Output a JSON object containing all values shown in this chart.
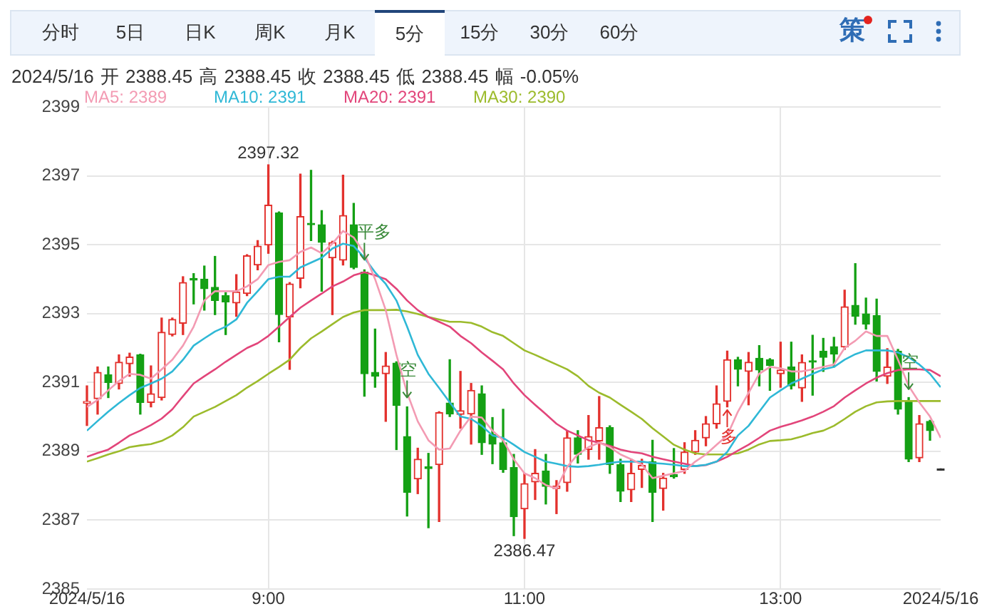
{
  "chart_data": {
    "type": "candlestick",
    "subtitle": "2024/5/16 开 2388.45 高 2388.45 收 2388.45 低 2388.45 幅 -0.05%",
    "annotations": [
      "分时",
      "5日",
      "日K",
      "周K",
      "月K",
      "5分",
      "15分",
      "30分",
      "60分",
      "策",
      {
        "text": "平多",
        "x": "2024-05-16T09:45",
        "y": 2394.56
      },
      {
        "text": "空",
        "x": "2024-05-16T10:05",
        "y": 2390.56
      },
      {
        "text": "多",
        "x": "2024-05-16T12:35",
        "y": 2390.2
      },
      {
        "text": "空",
        "x": "2024-05-16T14:00",
        "y": 2390.8
      }
    ],
    "x": [
      "2024-05-16T07:35",
      "2024-05-16T07:40",
      "2024-05-16T07:45",
      "2024-05-16T07:50",
      "2024-05-16T07:55",
      "2024-05-16T08:00",
      "2024-05-16T08:05",
      "2024-05-16T08:10",
      "2024-05-16T08:15",
      "2024-05-16T08:20",
      "2024-05-16T08:25",
      "2024-05-16T08:30",
      "2024-05-16T08:35",
      "2024-05-16T08:40",
      "2024-05-16T08:45",
      "2024-05-16T08:50",
      "2024-05-16T08:55",
      "2024-05-16T09:00",
      "2024-05-16T09:05",
      "2024-05-16T09:10",
      "2024-05-16T09:15",
      "2024-05-16T09:20",
      "2024-05-16T09:25",
      "2024-05-16T09:30",
      "2024-05-16T09:35",
      "2024-05-16T09:40",
      "2024-05-16T09:45",
      "2024-05-16T09:50",
      "2024-05-16T09:55",
      "2024-05-16T10:00",
      "2024-05-16T10:05",
      "2024-05-16T10:10",
      "2024-05-16T10:15",
      "2024-05-16T10:20",
      "2024-05-16T10:25",
      "2024-05-16T10:30",
      "2024-05-16T10:35",
      "2024-05-16T10:40",
      "2024-05-16T10:45",
      "2024-05-16T10:50",
      "2024-05-16T10:55",
      "2024-05-16T11:00",
      "2024-05-16T11:05",
      "2024-05-16T11:10",
      "2024-05-16T11:15",
      "2024-05-16T11:20",
      "2024-05-16T11:25",
      "2024-05-16T11:30",
      "2024-05-16T11:35",
      "2024-05-16T11:40",
      "2024-05-16T11:45",
      "2024-05-16T11:50",
      "2024-05-16T11:55",
      "2024-05-16T12:00",
      "2024-05-16T12:05",
      "2024-05-16T12:10",
      "2024-05-16T12:15",
      "2024-05-16T12:20",
      "2024-05-16T12:25",
      "2024-05-16T12:30",
      "2024-05-16T12:35",
      "2024-05-16T12:40",
      "2024-05-16T12:45",
      "2024-05-16T12:50",
      "2024-05-16T12:55",
      "2024-05-16T13:00",
      "2024-05-16T13:05",
      "2024-05-16T13:10",
      "2024-05-16T13:15",
      "2024-05-16T13:20",
      "2024-05-16T13:25",
      "2024-05-16T13:30",
      "2024-05-16T13:35",
      "2024-05-16T13:40",
      "2024-05-16T13:45",
      "2024-05-16T13:50",
      "2024-05-16T13:55",
      "2024-05-16T14:00",
      "2024-05-16T14:05",
      "2024-05-16T14:10",
      "2024-05-16T14:15"
    ],
    "xlim": [
      "2024-05-16T07:35",
      "2024-05-16T14:15"
    ],
    "xticks": [
      {
        "value": "2024-05-16T07:35",
        "label": "2024/5/16"
      },
      {
        "value": "2024-05-16T09:00",
        "label": "9:00"
      },
      {
        "value": "2024-05-16T11:00",
        "label": "11:00"
      },
      {
        "value": "2024-05-16T13:00",
        "label": "13:00"
      },
      {
        "value": "2024-05-16T14:15",
        "label": "2024/5/16"
      }
    ],
    "ylim": [
      2385,
      2399
    ],
    "yticks": [
      2385,
      2387,
      2389,
      2391,
      2393,
      2395,
      2397,
      2399
    ],
    "ohlc": [
      [
        2390.4,
        2390.9,
        2389.75,
        2390.45
      ],
      [
        2390.53,
        2391.45,
        2390.08,
        2391.29
      ],
      [
        2391.22,
        2391.45,
        2390.56,
        2391.0
      ],
      [
        2390.97,
        2391.8,
        2390.81,
        2391.59
      ],
      [
        2391.54,
        2391.85,
        2391.18,
        2391.74
      ],
      [
        2391.8,
        2391.82,
        2390.08,
        2390.42
      ],
      [
        2390.42,
        2391.48,
        2390.29,
        2390.67
      ],
      [
        2390.56,
        2392.87,
        2390.49,
        2392.46
      ],
      [
        2392.39,
        2392.87,
        2392.35,
        2392.83
      ],
      [
        2392.72,
        2394.07,
        2392.39,
        2393.9
      ],
      [
        2394.02,
        2394.16,
        2393.28,
        2393.97
      ],
      [
        2394.0,
        2394.38,
        2393.1,
        2393.72
      ],
      [
        2393.76,
        2394.66,
        2392.97,
        2393.38
      ],
      [
        2393.52,
        2393.61,
        2392.39,
        2393.34
      ],
      [
        2393.31,
        2394.13,
        2392.92,
        2393.63
      ],
      [
        2393.58,
        2394.71,
        2393.52,
        2394.68
      ],
      [
        2394.41,
        2395.12,
        2394.27,
        2394.96
      ],
      [
        2394.99,
        2397.32,
        2394.75,
        2396.15
      ],
      [
        2395.92,
        2395.95,
        2392.18,
        2392.97
      ],
      [
        2392.9,
        2393.9,
        2391.38,
        2393.86
      ],
      [
        2394.02,
        2397.05,
        2393.75,
        2395.82
      ],
      [
        2395.62,
        2397.16,
        2395.12,
        2395.58
      ],
      [
        2395.58,
        2395.99,
        2393.65,
        2395.07
      ],
      [
        2394.62,
        2395.1,
        2392.97,
        2395.06
      ],
      [
        2394.55,
        2397.02,
        2394.41,
        2395.85
      ],
      [
        2395.58,
        2396.2,
        2394.3,
        2394.34
      ],
      [
        2394.2,
        2394.27,
        2390.6,
        2391.25
      ],
      [
        2391.29,
        2392.55,
        2390.86,
        2391.18
      ],
      [
        2391.25,
        2391.87,
        2389.87,
        2391.48
      ],
      [
        2391.56,
        2391.6,
        2389.05,
        2390.33
      ],
      [
        2389.43,
        2390.29,
        2387.12,
        2387.81
      ],
      [
        2388.2,
        2389.09,
        2387.77,
        2388.77
      ],
      [
        2388.55,
        2388.94,
        2386.78,
        2388.5
      ],
      [
        2388.61,
        2390.15,
        2386.96,
        2390.12
      ],
      [
        2390.4,
        2391.66,
        2390.01,
        2390.08
      ],
      [
        2390.07,
        2391.32,
        2389.67,
        2390.18
      ],
      [
        2390.08,
        2390.97,
        2389.21,
        2390.77
      ],
      [
        2390.67,
        2390.9,
        2388.91,
        2389.25
      ],
      [
        2389.49,
        2389.98,
        2388.64,
        2389.21
      ],
      [
        2389.25,
        2390.22,
        2388.39,
        2388.47
      ],
      [
        2388.53,
        2388.91,
        2386.55,
        2387.1
      ],
      [
        2387.33,
        2388.36,
        2386.47,
        2388.06
      ],
      [
        2388.11,
        2389.05,
        2387.6,
        2388.36
      ],
      [
        2388.43,
        2388.91,
        2387.47,
        2387.98
      ],
      [
        2387.92,
        2388.15,
        2387.19,
        2387.99
      ],
      [
        2388.09,
        2389.6,
        2387.84,
        2389.39
      ],
      [
        2389.39,
        2389.6,
        2388.66,
        2388.91
      ],
      [
        2389.05,
        2390.04,
        2388.77,
        2389.43
      ],
      [
        2389.3,
        2390.59,
        2388.77,
        2389.69
      ],
      [
        2389.69,
        2389.74,
        2388.36,
        2388.61
      ],
      [
        2388.61,
        2388.77,
        2387.54,
        2387.84
      ],
      [
        2387.88,
        2388.77,
        2387.54,
        2388.36
      ],
      [
        2388.47,
        2388.77,
        2387.95,
        2388.59
      ],
      [
        2388.7,
        2389.32,
        2386.96,
        2387.81
      ],
      [
        2387.92,
        2388.36,
        2387.29,
        2388.22
      ],
      [
        2388.32,
        2389.08,
        2388.22,
        2388.26
      ],
      [
        2388.47,
        2389.25,
        2388.36,
        2388.98
      ],
      [
        2388.98,
        2389.6,
        2388.91,
        2389.32
      ],
      [
        2389.39,
        2390.01,
        2389.16,
        2389.8
      ],
      [
        2389.8,
        2390.9,
        2389.67,
        2390.38
      ],
      [
        2390.45,
        2391.91,
        2390.29,
        2391.66
      ],
      [
        2391.66,
        2391.73,
        2390.9,
        2391.38
      ],
      [
        2391.32,
        2391.87,
        2390.35,
        2391.59
      ],
      [
        2391.7,
        2392.07,
        2390.9,
        2391.36
      ],
      [
        2391.66,
        2391.69,
        2390.77,
        2391.49
      ],
      [
        2391.25,
        2392.17,
        2390.86,
        2391.36
      ],
      [
        2391.45,
        2392.17,
        2390.81,
        2390.9
      ],
      [
        2390.84,
        2391.8,
        2390.45,
        2391.58
      ],
      [
        2391.63,
        2392.37,
        2390.63,
        2391.59
      ],
      [
        2391.91,
        2392.28,
        2391.32,
        2391.73
      ],
      [
        2392.04,
        2392.31,
        2391.45,
        2391.82
      ],
      [
        2392.03,
        2393.68,
        2391.96,
        2393.2
      ],
      [
        2393.24,
        2394.45,
        2392.69,
        2392.92
      ],
      [
        2392.99,
        2393.45,
        2392.55,
        2392.69
      ],
      [
        2392.94,
        2393.42,
        2391.04,
        2391.32
      ],
      [
        2391.18,
        2391.98,
        2390.97,
        2391.45
      ],
      [
        2391.91,
        2391.96,
        2390.08,
        2390.22
      ],
      [
        2390.45,
        2390.56,
        2388.7,
        2388.77
      ],
      [
        2388.81,
        2390.04,
        2388.7,
        2389.8
      ],
      [
        2389.87,
        2389.9,
        2389.32,
        2389.6
      ],
      [
        2388.45,
        2388.45,
        2388.45,
        2388.45
      ]
    ],
    "colors": [
      "#e3312d",
      "#e3312d",
      "#14a014",
      "#e3312d",
      "#e3312d",
      "#14a014",
      "#e3312d",
      "#e3312d",
      "#e3312d",
      "#e3312d",
      "#14a014",
      "#14a014",
      "#14a014",
      "#14a014",
      "#e3312d",
      "#e3312d",
      "#e3312d",
      "#e3312d",
      "#14a014",
      "#e3312d",
      "#e3312d",
      "#14a014",
      "#14a014",
      "#e3312d",
      "#e3312d",
      "#14a014",
      "#14a014",
      "#14a014",
      "#e3312d",
      "#14a014",
      "#14a014",
      "#e3312d",
      "#14a014",
      "#e3312d",
      "#14a014",
      "#e3312d",
      "#e3312d",
      "#14a014",
      "#14a014",
      "#14a014",
      "#14a014",
      "#e3312d",
      "#e3312d",
      "#14a014",
      "#e3312d",
      "#e3312d",
      "#14a014",
      "#e3312d",
      "#e3312d",
      "#14a014",
      "#14a014",
      "#e3312d",
      "#e3312d",
      "#14a014",
      "#e3312d",
      "#14a014",
      "#e3312d",
      "#e3312d",
      "#e3312d",
      "#e3312d",
      "#e3312d",
      "#14a014",
      "#e3312d",
      "#14a014",
      "#14a014",
      "#e3312d",
      "#14a014",
      "#e3312d",
      "#14a014",
      "#14a014",
      "#14a014",
      "#e3312d",
      "#14a014",
      "#14a014",
      "#14a014",
      "#e3312d",
      "#14a014",
      "#14a014",
      "#e3312d",
      "#14a014",
      "#333333"
    ],
    "value_labels": [
      null,
      null,
      null,
      null,
      null,
      null,
      null,
      null,
      null,
      null,
      null,
      null,
      null,
      null,
      null,
      null,
      null,
      "2397.32",
      null,
      null,
      null,
      null,
      null,
      null,
      null,
      null,
      null,
      null,
      null,
      null,
      null,
      null,
      null,
      null,
      null,
      null,
      null,
      null,
      null,
      null,
      null,
      "2386.47",
      null,
      null,
      null,
      null,
      null,
      null,
      null,
      null,
      null,
      null,
      null,
      null,
      null,
      null,
      null,
      null,
      null,
      null,
      null,
      null,
      null,
      null,
      null,
      null,
      null,
      null,
      null,
      null,
      null,
      null,
      null,
      null,
      null,
      null,
      null,
      null,
      null,
      null,
      null
    ],
    "series": [
      {
        "name": "MA5: 2389",
        "type": "line",
        "color": "#f39bb3",
        "values": [
          2390.29,
          2390.49,
          2390.77,
          2391.04,
          2391.25,
          2391.22,
          2391.11,
          2391.38,
          2391.66,
          2392.07,
          2392.62,
          2393.38,
          2393.65,
          2393.65,
          2393.65,
          2393.79,
          2394.0,
          2394.41,
          2394.5,
          2394.55,
          2394.79,
          2394.92,
          2394.75,
          2395.03,
          2395.4,
          2395.21,
          2394.75,
          2394.0,
          2393.1,
          2391.8,
          2390.7,
          2389.87,
          2389.32,
          2389.05,
          2389.08,
          2389.6,
          2390.01,
          2389.98,
          2389.6,
          2389.32,
          2388.77,
          2388.36,
          2388.22,
          2388.02,
          2387.92,
          2388.55,
          2388.91,
          2389.12,
          2389.25,
          2389.12,
          2388.91,
          2388.77,
          2388.61,
          2388.22,
          2388.29,
          2388.36,
          2388.43,
          2388.7,
          2388.91,
          2389.19,
          2389.46,
          2390.15,
          2390.7,
          2391.25,
          2391.45,
          2391.41,
          2391.32,
          2391.32,
          2391.38,
          2391.45,
          2391.52,
          2392.0,
          2392.21,
          2392.48,
          2392.35,
          2392.35,
          2391.66,
          2390.9,
          2390.42,
          2390.01,
          2389.39
        ]
      },
      {
        "name": "MA10: 2391",
        "type": "line",
        "color": "#2fb8d6",
        "values": [
          2389.6,
          2389.88,
          2390.15,
          2390.4,
          2390.63,
          2390.84,
          2390.97,
          2391.11,
          2391.32,
          2391.66,
          2392.07,
          2392.28,
          2392.48,
          2392.62,
          2392.83,
          2393.31,
          2393.65,
          2394.0,
          2394.07,
          2394.07,
          2394.34,
          2394.48,
          2394.62,
          2394.89,
          2395.03,
          2394.96,
          2394.62,
          2394.2,
          2393.86,
          2393.38,
          2392.62,
          2391.8,
          2391.25,
          2390.84,
          2390.42,
          2390.01,
          2389.94,
          2389.74,
          2389.46,
          2389.39,
          2389.19,
          2388.98,
          2388.84,
          2388.7,
          2388.64,
          2388.57,
          2388.55,
          2388.57,
          2388.61,
          2388.66,
          2388.7,
          2388.7,
          2388.7,
          2388.66,
          2388.64,
          2388.61,
          2388.57,
          2388.57,
          2388.61,
          2388.7,
          2388.98,
          2389.46,
          2389.74,
          2390.15,
          2390.56,
          2390.77,
          2390.97,
          2391.11,
          2391.25,
          2391.38,
          2391.45,
          2391.66,
          2391.82,
          2391.93,
          2391.93,
          2391.93,
          2391.87,
          2391.73,
          2391.52,
          2391.25,
          2390.86
        ]
      },
      {
        "name": "MA20: 2391",
        "type": "line",
        "color": "#e2457a",
        "values": [
          2388.84,
          2388.95,
          2389.05,
          2389.25,
          2389.46,
          2389.6,
          2389.76,
          2389.95,
          2390.22,
          2390.6,
          2390.97,
          2391.18,
          2391.38,
          2391.6,
          2391.8,
          2392.0,
          2392.14,
          2392.35,
          2392.62,
          2392.9,
          2393.17,
          2393.38,
          2393.58,
          2393.79,
          2393.93,
          2394.11,
          2394.2,
          2394.11,
          2394.0,
          2393.72,
          2393.38,
          2393.1,
          2392.9,
          2392.76,
          2392.62,
          2392.35,
          2392.14,
          2391.87,
          2391.63,
          2391.38,
          2390.97,
          2390.63,
          2390.35,
          2390.08,
          2389.8,
          2389.6,
          2389.46,
          2389.32,
          2389.25,
          2389.16,
          2389.05,
          2388.98,
          2388.94,
          2388.84,
          2388.77,
          2388.7,
          2388.64,
          2388.57,
          2388.6,
          2388.7,
          2388.84,
          2389.02,
          2389.19,
          2389.39,
          2389.6,
          2389.71,
          2389.8,
          2389.9,
          2390.01,
          2390.15,
          2390.31,
          2390.56,
          2390.77,
          2390.97,
          2391.14,
          2391.27,
          2391.36,
          2391.38,
          2391.38,
          2391.36,
          2391.18
        ]
      },
      {
        "name": "MA30: 2390",
        "type": "line",
        "color": "#9cbb2c",
        "values": [
          2388.7,
          2388.8,
          2388.91,
          2389.0,
          2389.12,
          2389.17,
          2389.21,
          2389.3,
          2389.46,
          2389.7,
          2390.01,
          2390.15,
          2390.29,
          2390.46,
          2390.63,
          2390.85,
          2391.04,
          2391.25,
          2391.45,
          2391.66,
          2392.0,
          2392.28,
          2392.48,
          2392.69,
          2392.9,
          2393.03,
          2393.1,
          2393.1,
          2393.1,
          2393.11,
          2393.06,
          2392.99,
          2392.9,
          2392.83,
          2392.76,
          2392.76,
          2392.73,
          2392.62,
          2392.46,
          2392.35,
          2392.14,
          2391.93,
          2391.8,
          2391.66,
          2391.52,
          2391.38,
          2391.18,
          2390.9,
          2390.7,
          2390.56,
          2390.35,
          2390.15,
          2389.94,
          2389.67,
          2389.43,
          2389.19,
          2389.05,
          2388.94,
          2388.91,
          2388.91,
          2388.91,
          2388.94,
          2389.05,
          2389.2,
          2389.3,
          2389.32,
          2389.35,
          2389.43,
          2389.53,
          2389.6,
          2389.74,
          2389.94,
          2390.15,
          2390.31,
          2390.42,
          2390.45,
          2390.46,
          2390.46,
          2390.46,
          2390.46,
          2390.46
        ]
      }
    ],
    "grid": true,
    "legend": "top left"
  }
}
